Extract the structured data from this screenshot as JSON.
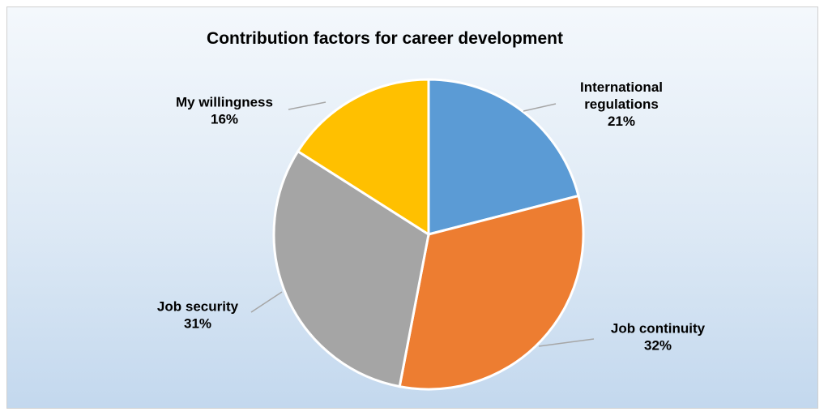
{
  "chart_data": {
    "type": "pie",
    "title": "Contribution factors for career development",
    "categories": [
      "International regulations",
      "Job continuity",
      "Job security",
      "My willingness"
    ],
    "values": [
      21,
      32,
      31,
      16
    ],
    "percent_labels": [
      "21%",
      "32%",
      "31%",
      "16%"
    ],
    "label_lines": [
      [
        "International",
        "regulations"
      ],
      [
        "Job continuity"
      ],
      [
        "Job security"
      ],
      [
        "My willingness"
      ]
    ],
    "colors": [
      "#5b9bd5",
      "#ed7d31",
      "#a5a5a5",
      "#ffc000"
    ],
    "start_angle": "12 o'clock",
    "direction": "clockwise",
    "legend": "none"
  }
}
